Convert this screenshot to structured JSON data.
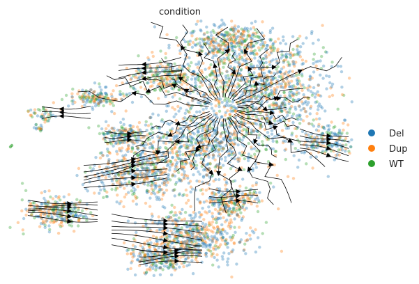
{
  "chart_data": {
    "type": "scatter",
    "subtype": "embedding scatter with RNA-velocity streamlines",
    "title": "condition",
    "xlabel": "",
    "ylabel": "",
    "axes_visible": false,
    "grid": false,
    "legend_position": "right",
    "series": [
      {
        "name": "Del",
        "color": "#1f77b4"
      },
      {
        "name": "Dup",
        "color": "#ff7f0e"
      },
      {
        "name": "WT",
        "color": "#2ca02c"
      }
    ],
    "point_alpha": 0.35,
    "streamline_color": "#000000"
  }
}
